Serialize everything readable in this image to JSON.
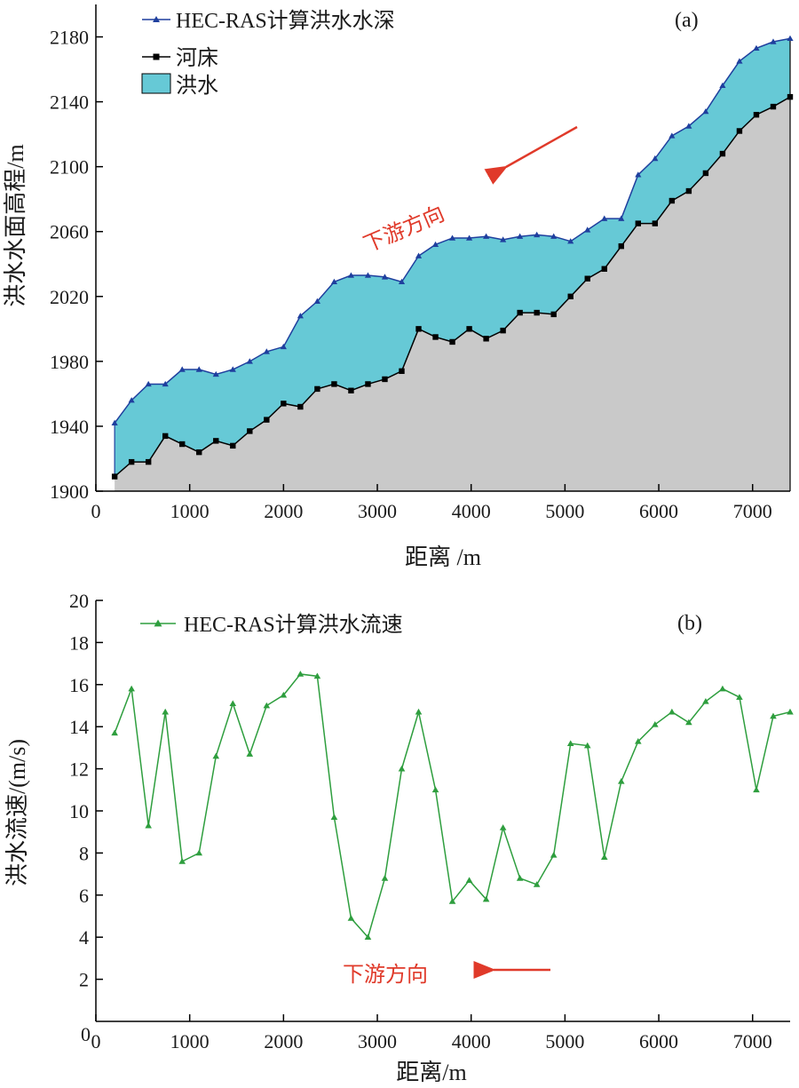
{
  "chart_data": [
    {
      "type": "area",
      "panel_label": "(a)",
      "xlabel": "距离 /m",
      "ylabel": "洪水水面高程/m",
      "xlim": [
        0,
        7400
      ],
      "ylim": [
        1900,
        2200
      ],
      "x_ticks": [
        0,
        1000,
        2000,
        3000,
        4000,
        5000,
        6000,
        7000
      ],
      "y_ticks": [
        1900,
        1940,
        1980,
        2020,
        2060,
        2100,
        2140,
        2180
      ],
      "grid": false,
      "legend_position": "top-left",
      "annotation": {
        "text": "下游方向",
        "arrow": "pointing-left-downward",
        "color": "#e03a2a"
      },
      "x": [
        200,
        380,
        560,
        740,
        920,
        1100,
        1280,
        1460,
        1640,
        1820,
        2000,
        2180,
        2360,
        2540,
        2720,
        2900,
        3080,
        3260,
        3440,
        3620,
        3800,
        3980,
        4160,
        4340,
        4520,
        4700,
        4880,
        5060,
        5240,
        5420,
        5600,
        5780,
        5960,
        6140,
        6320,
        6500,
        6680,
        6860,
        7040,
        7220,
        7400
      ],
      "series": [
        {
          "name": "HEC-RAS计算洪水水深",
          "role": "water-surface",
          "color": "#1f3f9e",
          "marker": "triangle",
          "values": [
            1942,
            1956,
            1966,
            1966,
            1975,
            1975,
            1972,
            1975,
            1980,
            1986,
            1989,
            2008,
            2017,
            2029,
            2033,
            2033,
            2032,
            2029,
            2045,
            2052,
            2056,
            2056,
            2057,
            2055,
            2057,
            2058,
            2057,
            2054,
            2061,
            2068,
            2068,
            2095,
            2105,
            2119,
            2125,
            2134,
            2150,
            2165,
            2173,
            2177,
            2179
          ]
        },
        {
          "name": "河床",
          "role": "riverbed",
          "color": "#000000",
          "marker": "square",
          "values": [
            1909,
            1918,
            1918,
            1934,
            1929,
            1924,
            1931,
            1928,
            1937,
            1944,
            1954,
            1952,
            1963,
            1966,
            1962,
            1966,
            1969,
            1974,
            2000,
            1995,
            1992,
            2000,
            1994,
            1999,
            2010,
            2010,
            2009,
            2020,
            2031,
            2037,
            2051,
            2065,
            2065,
            2079,
            2085,
            2096,
            2108,
            2122,
            2132,
            2137,
            2143
          ]
        },
        {
          "name": "洪水",
          "role": "flood-fill",
          "color": "#66c9d6"
        }
      ],
      "ground_fill_color": "#c9c9c9"
    },
    {
      "type": "line",
      "panel_label": "(b)",
      "xlabel": "距离/m",
      "ylabel": "洪水流速/(m/s)",
      "xlim": [
        0,
        7400
      ],
      "ylim": [
        0,
        20
      ],
      "x_ticks": [
        0,
        1000,
        2000,
        3000,
        4000,
        5000,
        6000,
        7000
      ],
      "y_ticks": [
        2,
        4,
        6,
        8,
        10,
        12,
        14,
        16,
        18,
        20
      ],
      "y_origin_label": "0",
      "grid": false,
      "legend_position": "top-left",
      "annotation": {
        "text": "下游方向",
        "arrow": "pointing-left",
        "color": "#e03a2a"
      },
      "x": [
        200,
        380,
        560,
        740,
        920,
        1100,
        1280,
        1460,
        1640,
        1820,
        2000,
        2180,
        2360,
        2540,
        2720,
        2900,
        3080,
        3260,
        3440,
        3620,
        3800,
        3980,
        4160,
        4340,
        4520,
        4700,
        4880,
        5060,
        5240,
        5420,
        5600,
        5780,
        5960,
        6140,
        6320,
        6500,
        6680,
        6860,
        7040,
        7220,
        7400
      ],
      "series": [
        {
          "name": "HEC-RAS计算洪水流速",
          "color": "#2e9e3e",
          "marker": "triangle",
          "values": [
            13.7,
            15.8,
            9.3,
            14.7,
            7.6,
            8.0,
            12.6,
            15.1,
            12.7,
            15.0,
            15.5,
            16.5,
            16.4,
            9.7,
            4.9,
            4.0,
            6.8,
            12.0,
            14.7,
            11.0,
            5.7,
            6.7,
            5.8,
            9.2,
            6.8,
            6.5,
            7.9,
            13.2,
            13.1,
            7.8,
            11.4,
            13.3,
            14.1,
            14.7,
            14.2,
            15.2,
            15.8,
            15.4,
            11.0,
            14.5,
            14.7
          ]
        }
      ]
    }
  ]
}
